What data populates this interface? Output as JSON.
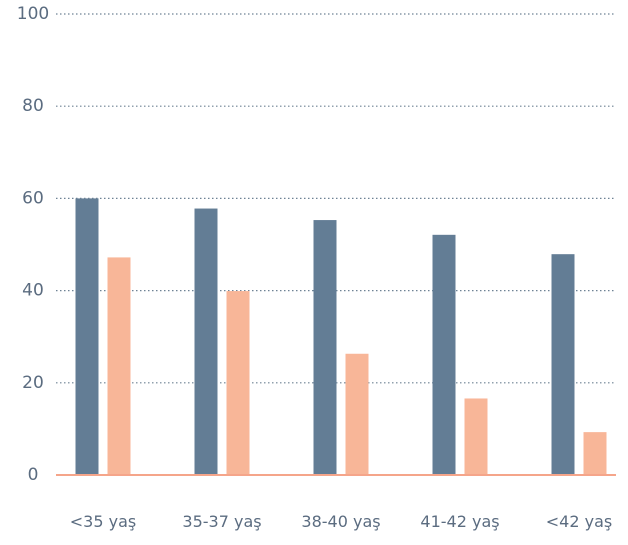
{
  "chart_data": {
    "type": "bar",
    "title": "",
    "xlabel": "",
    "ylabel": "",
    "categories": [
      "<35 yaş",
      "35-37 yaş",
      "38-40 yaş",
      "41-42 yaş",
      "<42 yaş"
    ],
    "series": [
      {
        "values": [
          60,
          57.8,
          55.3,
          52.1,
          47.9
        ],
        "color": "#637d95"
      },
      {
        "values": [
          47.2,
          39.9,
          26.3,
          16.6,
          9.3
        ],
        "color": "#f8b698"
      }
    ],
    "ylim": [
      0,
      100
    ],
    "yticks": [
      "0",
      "20",
      "40",
      "60",
      "80",
      "100"
    ],
    "ytick_values": [
      0,
      20,
      40,
      60,
      80,
      100
    ],
    "grid": true,
    "grid_color": "#6e8294",
    "baseline_color": "#f5a58a",
    "tick_color": "#5b6c80",
    "legend": "none"
  }
}
